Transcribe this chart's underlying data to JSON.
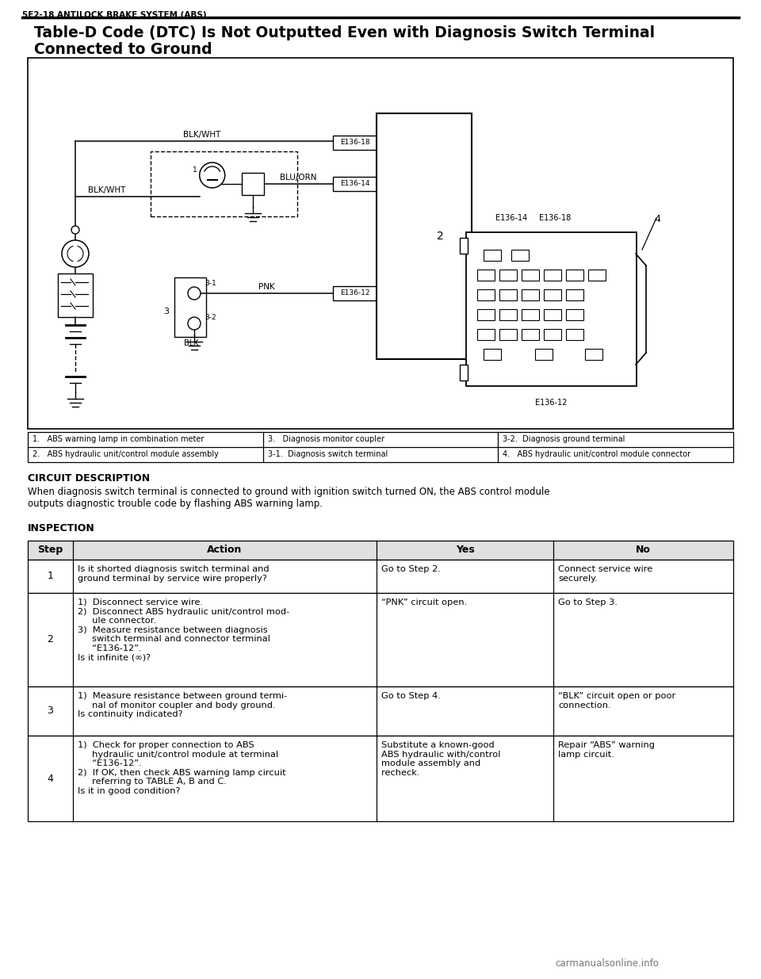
{
  "page_header": "5E2-18 ANTILOCK BRAKE SYSTEM (ABS)",
  "title_line1": "Table-D Code (DTC) Is Not Outputted Even with Diagnosis Switch Terminal",
  "title_line2": "Connected to Ground",
  "circuit_description_header": "CIRCUIT DESCRIPTION",
  "circuit_description_text1": "When diagnosis switch terminal is connected to ground with ignition switch turned ON, the ABS control module",
  "circuit_description_text2": "outputs diagnostic trouble code by flashing ABS warning lamp.",
  "inspection_header": "INSPECTION",
  "table_headers": [
    "Step",
    "Action",
    "Yes",
    "No"
  ],
  "table_rows": [
    {
      "step": "1",
      "action": "Is it shorted diagnosis switch terminal and\nground terminal by service wire properly?",
      "yes": "Go to Step 2.",
      "no": "Connect service wire\nsecurely."
    },
    {
      "step": "2",
      "action": "1)  Disconnect service wire.\n2)  Disconnect ABS hydraulic unit/control mod-\n     ule connector.\n3)  Measure resistance between diagnosis\n     switch terminal and connector terminal\n     “E136-12”.\nIs it infinite (∞)?",
      "yes": "“PNK” circuit open.",
      "no": "Go to Step 3."
    },
    {
      "step": "3",
      "action": "1)  Measure resistance between ground termi-\n     nal of monitor coupler and body ground.\nIs continuity indicated?",
      "yes": "Go to Step 4.",
      "no": "“BLK” circuit open or poor\nconnection."
    },
    {
      "step": "4",
      "action": "1)  Check for proper connection to ABS\n     hydraulic unit/control module at terminal\n     “E136-12”.\n2)  If OK, then check ABS warning lamp circuit\n     referring to TABLE A, B and C.\nIs it in good condition?",
      "yes": "Substitute a known-good\nABS hydraulic with/control\nmodule assembly and\nrecheck.",
      "no": "Repair “ABS” warning\nlamp circuit."
    }
  ],
  "legend_rows": [
    [
      "1.   ABS warning lamp in combination meter",
      "3.   Diagnosis monitor coupler",
      "3-2.  Diagnosis ground terminal"
    ],
    [
      "2.   ABS hydraulic unit/control module assembly",
      "3-1.  Diagnosis switch terminal",
      "4.   ABS hydraulic unit/control module connector"
    ]
  ],
  "bg_color": "#ffffff",
  "watermark": "carmanualsonline.info"
}
